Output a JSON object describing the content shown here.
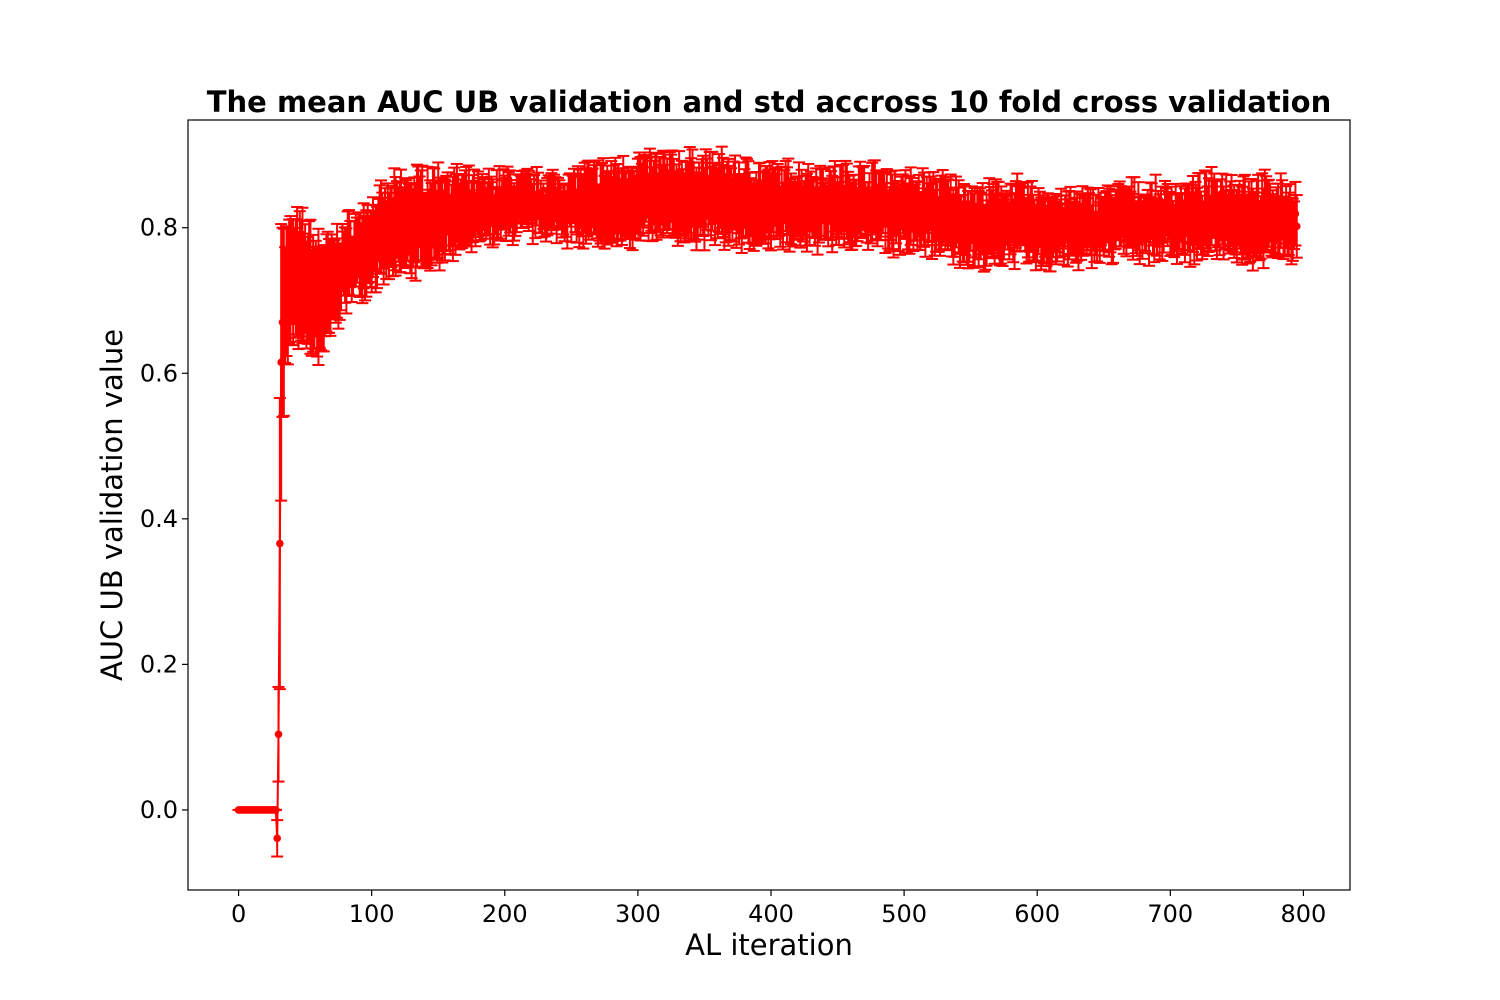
{
  "chart_data": {
    "type": "scatter",
    "title": "The mean AUC UB validation and std accross 10 fold cross validation",
    "xlabel": "AL iteration",
    "ylabel": "AUC UB validation value",
    "xlim": [
      -38,
      835
    ],
    "ylim": [
      -0.11,
      0.948
    ],
    "xticks": [
      0,
      100,
      200,
      300,
      400,
      500,
      600,
      700,
      800
    ],
    "yticks": [
      0.0,
      0.2,
      0.4,
      0.6,
      0.8
    ],
    "ytick_labels": [
      "0.0",
      "0.2",
      "0.4",
      "0.6",
      "0.8"
    ],
    "grid": false,
    "legend": "none",
    "color": "#ff0000",
    "series": [
      {
        "x": [
          0,
          28,
          29,
          30,
          31,
          32,
          33,
          35,
          40,
          50,
          60,
          70,
          80,
          100,
          120,
          140,
          160,
          180,
          200,
          220,
          240,
          260,
          280,
          300,
          320,
          340,
          360,
          380,
          400,
          420,
          440,
          460,
          480,
          500,
          520,
          540,
          560,
          580,
          600,
          620,
          640,
          660,
          680,
          700,
          720,
          740,
          760,
          780,
          795
        ],
        "y": [
          0.0,
          0.0,
          -0.039,
          0.104,
          0.366,
          0.615,
          0.67,
          0.7,
          0.73,
          0.72,
          0.7,
          0.72,
          0.75,
          0.78,
          0.8,
          0.81,
          0.82,
          0.82,
          0.83,
          0.83,
          0.83,
          0.83,
          0.83,
          0.84,
          0.84,
          0.84,
          0.84,
          0.83,
          0.83,
          0.83,
          0.83,
          0.83,
          0.83,
          0.82,
          0.82,
          0.81,
          0.8,
          0.81,
          0.8,
          0.8,
          0.8,
          0.81,
          0.81,
          0.81,
          0.81,
          0.82,
          0.81,
          0.81,
          0.81
        ],
        "std": [
          0.0,
          0.0,
          0.025,
          0.065,
          0.2,
          0.19,
          0.13,
          0.09,
          0.08,
          0.08,
          0.08,
          0.06,
          0.05,
          0.05,
          0.06,
          0.06,
          0.05,
          0.04,
          0.04,
          0.035,
          0.035,
          0.045,
          0.05,
          0.05,
          0.05,
          0.05,
          0.05,
          0.05,
          0.045,
          0.045,
          0.045,
          0.045,
          0.045,
          0.045,
          0.045,
          0.045,
          0.045,
          0.045,
          0.045,
          0.04,
          0.04,
          0.04,
          0.04,
          0.04,
          0.045,
          0.045,
          0.05,
          0.045,
          0.04
        ]
      }
    ]
  }
}
